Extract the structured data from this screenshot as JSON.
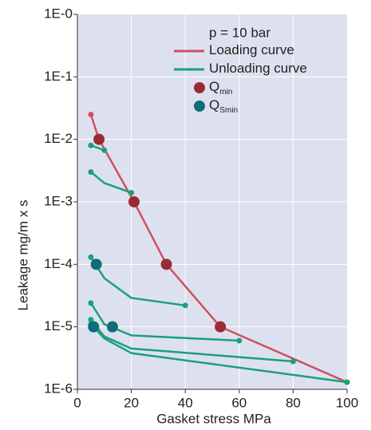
{
  "chart_data": {
    "type": "line",
    "log_y": true,
    "grid": true,
    "xlabel": "Gasket stress MPa",
    "ylabel": "Leakage mg/m x s",
    "annotation": "p = 10 bar",
    "xlim": [
      0,
      100
    ],
    "xticks": [
      0,
      20,
      40,
      60,
      80,
      100
    ],
    "ylim": [
      1e-06,
      1
    ],
    "yticks": [
      {
        "value": 1,
        "label": "1E-0"
      },
      {
        "value": 0.1,
        "label": "1E-1"
      },
      {
        "value": 0.01,
        "label": "1E-2"
      },
      {
        "value": 0.001,
        "label": "1E-3"
      },
      {
        "value": 0.0001,
        "label": "1E-4"
      },
      {
        "value": 1e-05,
        "label": "1E-5"
      },
      {
        "value": 1e-06,
        "label": "1E-6"
      }
    ],
    "series": [
      {
        "name": "Loading curve",
        "color": "#d0505f",
        "x": [
          5,
          8,
          21,
          33,
          53,
          100
        ],
        "values": [
          0.025,
          0.01,
          0.001,
          0.0001,
          1e-05,
          1.3e-06
        ]
      },
      {
        "name": "Unloading curve",
        "color": "#1aa07a",
        "curves": [
          {
            "x": [
              10,
              5
            ],
            "values": [
              0.0067,
              0.008
            ]
          },
          {
            "x": [
              20,
              10,
              5
            ],
            "values": [
              0.0014,
              0.002,
              0.003
            ]
          },
          {
            "x": [
              40,
              20,
              10,
              5
            ],
            "values": [
              2.2e-05,
              2.9e-05,
              6e-05,
              0.00013
            ]
          },
          {
            "x": [
              60,
              20,
              10,
              5
            ],
            "values": [
              6e-06,
              7.3e-06,
              1.1e-05,
              2.4e-05
            ]
          },
          {
            "x": [
              80,
              20,
              10,
              5
            ],
            "values": [
              2.8e-06,
              4.5e-06,
              7e-06,
              1.3e-05
            ]
          },
          {
            "x": [
              100,
              20,
              10,
              5
            ],
            "values": [
              1.3e-06,
              3.8e-06,
              6.5e-06,
              1.1e-05
            ]
          }
        ]
      },
      {
        "name": "Q",
        "subscript": "min",
        "color": "#9b2a35",
        "markers_only": true,
        "x": [
          8,
          21,
          33,
          53
        ],
        "values": [
          0.01,
          0.001,
          0.0001,
          1e-05
        ]
      },
      {
        "name": "Q",
        "subscript": "Smin",
        "color": "#0b6e78",
        "markers_only": true,
        "x": [
          7,
          6,
          13
        ],
        "values": [
          0.0001,
          1e-05,
          1e-05
        ]
      }
    ]
  }
}
